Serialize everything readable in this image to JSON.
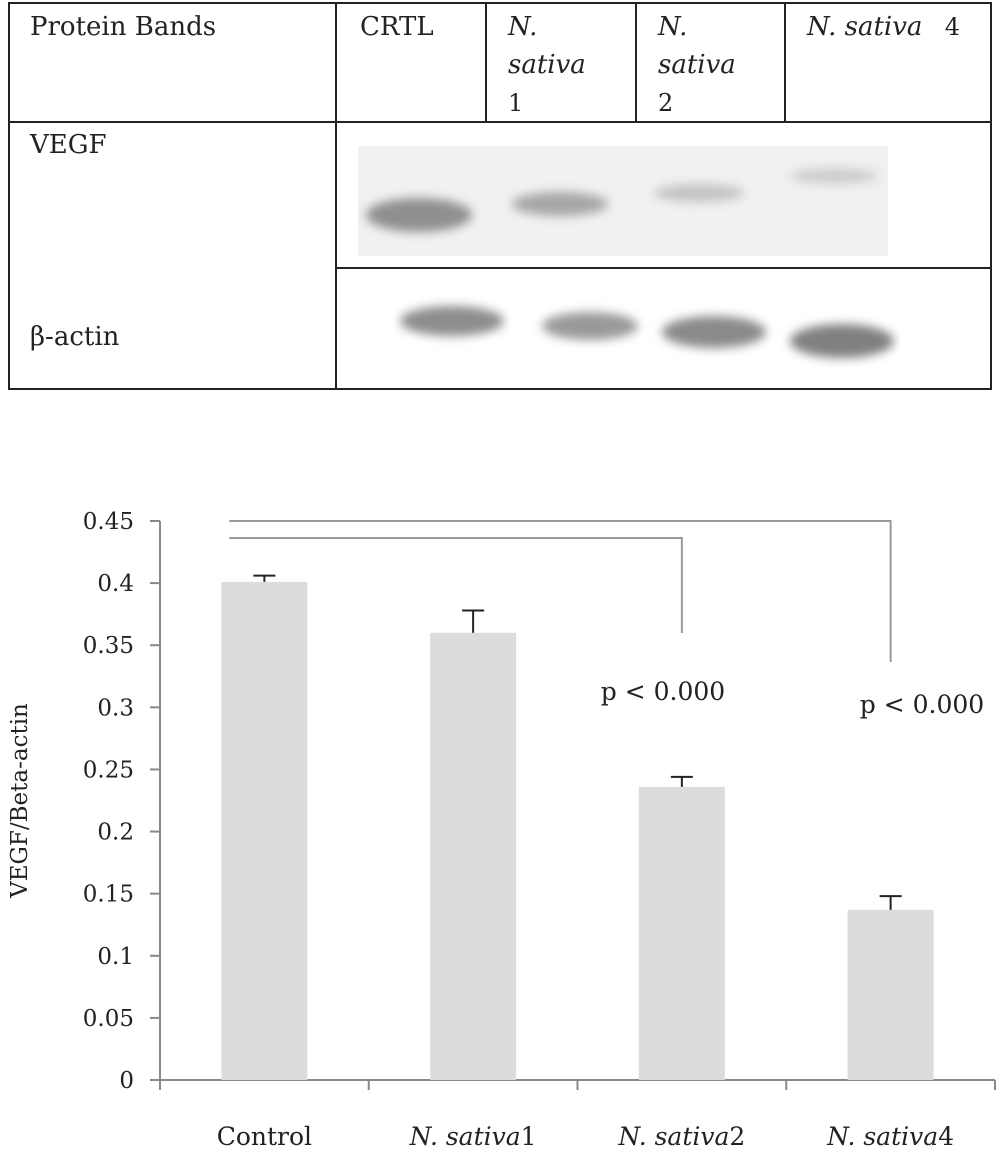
{
  "table": {
    "header": {
      "label": "Protein Bands",
      "lanes": [
        {
          "lines": [
            "CRTL"
          ],
          "italic": false
        },
        {
          "lines": [
            "N.",
            "sativa",
            "1"
          ],
          "italic_count": 2
        },
        {
          "lines": [
            "N.",
            "sativa",
            "2"
          ],
          "italic_count": 2
        },
        {
          "name": "N. sativa",
          "number": "4"
        }
      ]
    },
    "rows": [
      {
        "label": "VEGF"
      },
      {
        "label": "β-actin"
      }
    ]
  },
  "chart_data": {
    "type": "bar",
    "categories": [
      {
        "name": "N. sativa",
        "suffix": "",
        "plain": "Control"
      },
      {
        "name": "N. sativa",
        "suffix": "1"
      },
      {
        "name": "N. sativa",
        "suffix": "2"
      },
      {
        "name": "N. sativa",
        "suffix": "4"
      }
    ],
    "category_labels": [
      "Control",
      "N. sativa1",
      "N. sativa2",
      "N. sativa4"
    ],
    "values": [
      0.401,
      0.36,
      0.236,
      0.137
    ],
    "errors": [
      0.005,
      0.018,
      0.008,
      0.011
    ],
    "ylabel": "VEGF/Beta-actin",
    "ylim": [
      0,
      0.45
    ],
    "yticks": [
      "0",
      "0.05",
      "0.1",
      "0.15",
      "0.2",
      "0.25",
      "0.3",
      "0.35",
      "0.4",
      "0.45"
    ],
    "annotations": [
      {
        "text": "p < 0.000",
        "from": 0,
        "to": 2
      },
      {
        "text": "p < 0.000",
        "from": 0,
        "to": 3
      }
    ],
    "grid": false,
    "bar_color": "#dcdcdc"
  }
}
